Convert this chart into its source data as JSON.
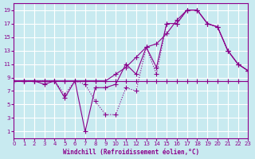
{
  "title": "",
  "xlabel": "Windchill (Refroidissement éolien,°C)",
  "ylabel": "",
  "bg_color": "#c8eaf0",
  "grid_color": "#ffffff",
  "line_color": "#8B008B",
  "xlim": [
    0,
    23
  ],
  "ylim": [
    0,
    20
  ],
  "xticks": [
    0,
    1,
    2,
    3,
    4,
    5,
    6,
    7,
    8,
    9,
    10,
    11,
    12,
    13,
    14,
    15,
    16,
    17,
    18,
    19,
    20,
    21,
    22,
    23
  ],
  "yticks": [
    1,
    3,
    5,
    7,
    9,
    11,
    13,
    15,
    17,
    19
  ],
  "series1_x": [
    0,
    1,
    2,
    3,
    4,
    5,
    6,
    7,
    8,
    9,
    10,
    11,
    12,
    13,
    14,
    15,
    16,
    17,
    18,
    19,
    20,
    21,
    22,
    23
  ],
  "series1_y": [
    8.5,
    8.5,
    8.5,
    8.5,
    8.5,
    8.5,
    8.5,
    8.5,
    8.5,
    8.5,
    8.5,
    8.5,
    8.5,
    8.5,
    8.5,
    8.5,
    8.5,
    8.5,
    8.5,
    8.5,
    8.5,
    8.5,
    8.5,
    8.5
  ],
  "series2_x": [
    0,
    1,
    2,
    3,
    4,
    5,
    6,
    7,
    8,
    9,
    10,
    11,
    12,
    13,
    14,
    15,
    16,
    17,
    18,
    19,
    20,
    21,
    22,
    23
  ],
  "series2_y": [
    8.5,
    8.5,
    8.5,
    8.5,
    8.5,
    8.5,
    8.5,
    8.5,
    8.5,
    8.5,
    9.5,
    10.5,
    12.0,
    13.5,
    14.0,
    15.5,
    17.5,
    19.0,
    19.0,
    17.0,
    16.5,
    13.0,
    11.0,
    10.0
  ],
  "series3_x": [
    0,
    1,
    2,
    3,
    4,
    5,
    6,
    7,
    8,
    9,
    10,
    11,
    12,
    13,
    14,
    15,
    16,
    17,
    18,
    19,
    20,
    21,
    22,
    23
  ],
  "series3_y": [
    8.5,
    8.5,
    8.5,
    8.0,
    8.5,
    6.0,
    8.5,
    1.0,
    7.5,
    7.5,
    8.0,
    11.0,
    9.5,
    13.5,
    10.5,
    17.0,
    17.0,
    19.0,
    19.0,
    17.0,
    16.5,
    13.0,
    11.0,
    10.0
  ],
  "series4_x": [
    0,
    1,
    2,
    3,
    4,
    5,
    6,
    7,
    8,
    9,
    10,
    11,
    12,
    13,
    14,
    15,
    16,
    17,
    18,
    19,
    20,
    21,
    22,
    23
  ],
  "series4_y": [
    8.5,
    8.5,
    8.5,
    8.5,
    8.5,
    6.5,
    8.5,
    8.0,
    5.5,
    3.5,
    3.5,
    7.5,
    7.0,
    13.5,
    9.5,
    17.0,
    17.0,
    19.0,
    19.0,
    17.0,
    16.5,
    13.0,
    11.0,
    10.0
  ],
  "lw": 0.8,
  "marker_size": 4,
  "marker_ew": 0.8
}
